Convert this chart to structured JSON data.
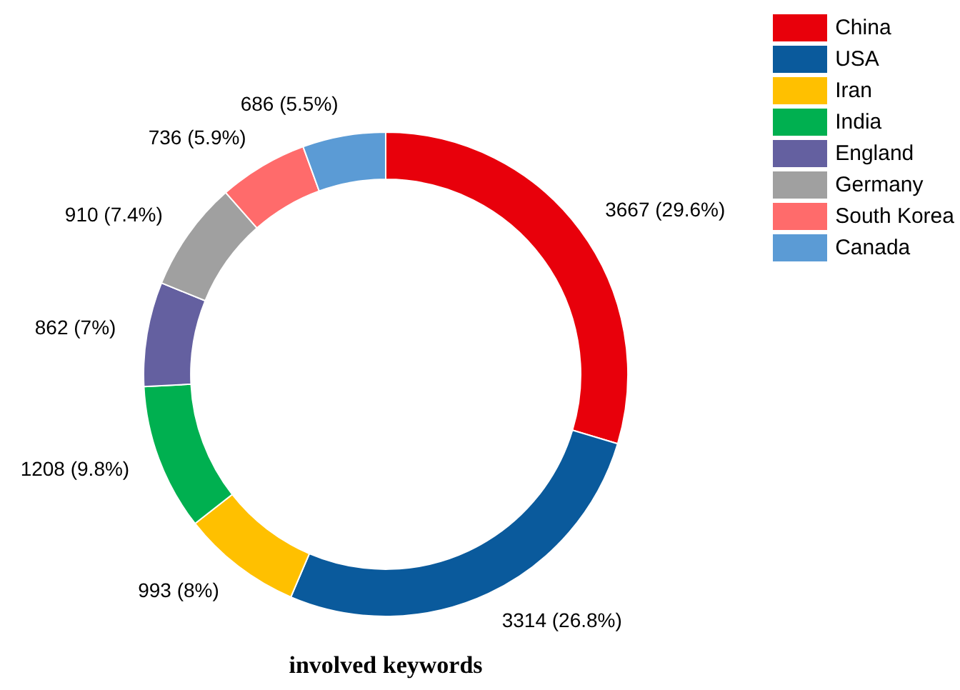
{
  "chart_data": {
    "type": "donut",
    "title": "involved keywords",
    "categories": [
      "China",
      "USA",
      "Iran",
      "India",
      "England",
      "Germany",
      "South Korea",
      "Canada"
    ],
    "values": [
      3667,
      3314,
      993,
      1208,
      862,
      910,
      736,
      686
    ],
    "colors": [
      "#e8000b",
      "#0a5a9c",
      "#ffc000",
      "#00b050",
      "#6460a0",
      "#a0a0a0",
      "#ff6b6b",
      "#5b9bd5"
    ],
    "value_labels": [
      "3667 (29.6%)",
      "3314 (26.8%)",
      "993 (8%)",
      "1208 (9.8%)",
      "862 (7%)",
      "910 (7.4%)",
      "736 (5.9%)",
      "686 (5.5%)"
    ],
    "legend": "top right"
  }
}
